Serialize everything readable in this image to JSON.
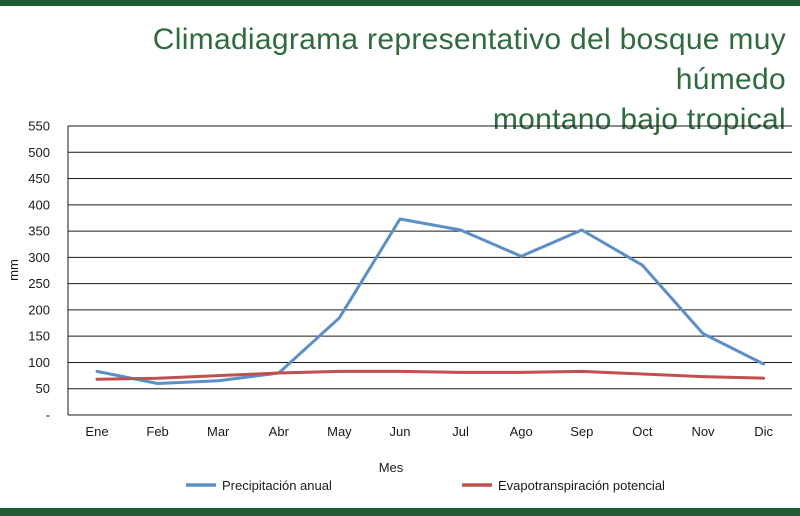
{
  "chart_data": {
    "type": "line",
    "title_lines": [
      "Climadiagrama representativo del bosque muy húmedo",
      "montano bajo tropical"
    ],
    "xlabel": "Mes",
    "ylabel": "mm",
    "categories": [
      "Ene",
      "Feb",
      "Mar",
      "Abr",
      "May",
      "Jun",
      "Jul",
      "Ago",
      "Sep",
      "Oct",
      "Nov",
      "Dic"
    ],
    "ylim": [
      0,
      550
    ],
    "yticks": [
      0,
      50,
      100,
      150,
      200,
      250,
      300,
      350,
      400,
      450,
      500,
      550
    ],
    "ytick_labels": [
      "-",
      "50",
      "100",
      "150",
      "200",
      "250",
      "300",
      "350",
      "400",
      "450",
      "500",
      "550"
    ],
    "grid": "horizontal",
    "legend_position": "bottom",
    "series": [
      {
        "name": "Precipitación anual",
        "color": "#5b8fc7",
        "values": [
          83,
          60,
          65,
          80,
          185,
          373,
          352,
          302,
          352,
          285,
          155,
          97
        ]
      },
      {
        "name": "Evapotranspiración potencial",
        "color": "#c0504d",
        "values": [
          68,
          70,
          75,
          80,
          83,
          83,
          81,
          81,
          83,
          78,
          73,
          70
        ]
      }
    ]
  },
  "colors": {
    "band": "#1f5c33",
    "title": "#2e6b3e"
  }
}
